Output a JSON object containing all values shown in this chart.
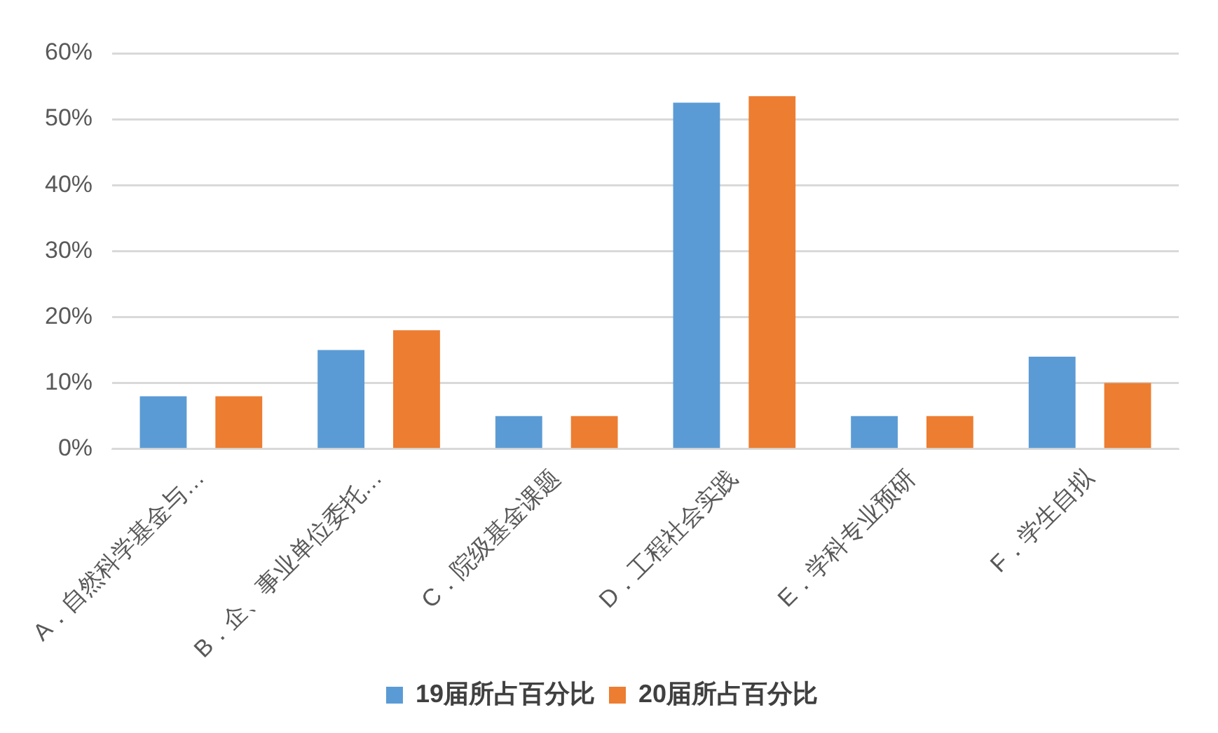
{
  "chart_data": {
    "type": "bar",
    "categories": [
      "A．自然科学基金与…",
      "B．企、事业单位委托…",
      "C．院级基金课题",
      "D．工程社会实践",
      "E．学科专业预研",
      "F．学生自拟"
    ],
    "series": [
      {
        "name": "19届所占百分比",
        "color": "#5b9bd5",
        "values": [
          8,
          15,
          5,
          52.5,
          5,
          14
        ]
      },
      {
        "name": "20届所占百分比",
        "color": "#ed7d31",
        "values": [
          8,
          18,
          5,
          53.5,
          5,
          10
        ]
      }
    ],
    "ylim": [
      0,
      60
    ],
    "yticks": [
      {
        "value": 0,
        "label": "0%"
      },
      {
        "value": 10,
        "label": "10%"
      },
      {
        "value": 20,
        "label": "20%"
      },
      {
        "value": 30,
        "label": "30%"
      },
      {
        "value": 40,
        "label": "40%"
      },
      {
        "value": 50,
        "label": "50%"
      },
      {
        "value": 60,
        "label": "60%"
      }
    ],
    "grid": "y",
    "legend": "bottom"
  }
}
